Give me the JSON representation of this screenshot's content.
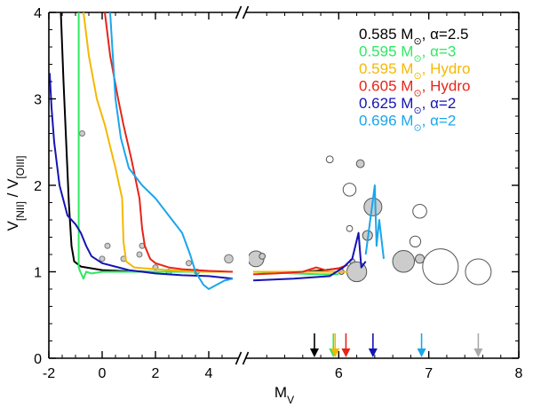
{
  "chart_data": {
    "type": "line",
    "xlabel_main": "M",
    "xlabel_sub": "V",
    "ylabel_num_main": "V",
    "ylabel_num_sub": "[NII]",
    "ylabel_sep": " / ",
    "ylabel_den_main": "V",
    "ylabel_den_sub": "[OIII]",
    "ylim": [
      0,
      4
    ],
    "left_panel_xlim": [
      -2,
      5
    ],
    "right_panel_xlim": [
      5,
      8
    ],
    "xticks_left": [
      "-2",
      "0",
      "2",
      "4"
    ],
    "xticks_right": [
      "6",
      "7",
      "8"
    ],
    "yticks": [
      "0",
      "1",
      "2",
      "3",
      "4"
    ],
    "sun_symbol": "⊙",
    "series": [
      {
        "name": "0.585",
        "legend": {
          "mass": "0.585 M",
          "param": ", α=2.5"
        },
        "color": "#000000",
        "left": [
          [
            -1.55,
            4.0
          ],
          [
            -1.45,
            3.2
          ],
          [
            -1.35,
            2.5
          ],
          [
            -1.25,
            1.8
          ],
          [
            -1.15,
            1.3
          ],
          [
            -1.05,
            1.12
          ],
          [
            -0.8,
            1.06
          ],
          [
            0,
            1.02
          ],
          [
            1,
            1.005
          ],
          [
            2,
            1.0
          ],
          [
            3,
            1.0
          ],
          [
            4.0,
            1.0
          ],
          [
            4.9,
            1.0
          ]
        ],
        "right": [
          [
            5.05,
            1.0
          ],
          [
            5.3,
            1.0
          ],
          [
            5.6,
            1.0
          ],
          [
            5.85,
            1.02
          ],
          [
            6.0,
            1.04
          ]
        ],
        "arrow_x": 5.73
      },
      {
        "name": "0.595 a3",
        "legend": {
          "mass": "0.595 M",
          "param": ", α=3"
        },
        "color": "#2ee860",
        "left": [
          [
            -0.88,
            4.0
          ],
          [
            -0.88,
            1.05
          ],
          [
            -0.82,
            1.0
          ],
          [
            -0.7,
            0.92
          ],
          [
            -0.6,
            1.0
          ],
          [
            -0.4,
            0.98
          ],
          [
            0,
            1.0
          ],
          [
            1,
            1.0
          ],
          [
            2,
            1.0
          ],
          [
            3,
            1.0
          ],
          [
            4.0,
            1.0
          ],
          [
            4.9,
            1.0
          ]
        ],
        "right": [
          [
            5.05,
            1.0
          ],
          [
            5.5,
            0.98
          ],
          [
            5.8,
            0.97
          ],
          [
            6.0,
            0.97
          ]
        ],
        "arrow_x": 5.94
      },
      {
        "name": "0.595 hydro",
        "legend": {
          "mass": "0.595 M",
          "param": ", Hydro"
        },
        "color": "#f5b800",
        "left": [
          [
            -0.7,
            4.0
          ],
          [
            -0.5,
            3.5
          ],
          [
            -0.2,
            3.0
          ],
          [
            0.1,
            2.7
          ],
          [
            0.5,
            2.2
          ],
          [
            0.75,
            1.85
          ],
          [
            0.8,
            1.35
          ],
          [
            0.9,
            1.12
          ],
          [
            1.2,
            1.05
          ],
          [
            2,
            1.03
          ],
          [
            3,
            1.01
          ],
          [
            4,
            1.0
          ],
          [
            4.9,
            1.0
          ]
        ],
        "right": [
          [
            5.05,
            1.0
          ],
          [
            5.5,
            1.0
          ],
          [
            5.9,
            1.0
          ],
          [
            6.1,
            1.0
          ]
        ],
        "arrow_x": 5.96
      },
      {
        "name": "0.605 hydro",
        "legend": {
          "mass": "0.605 M",
          "param": ", Hydro"
        },
        "color": "#e82418",
        "left": [
          [
            0.1,
            4.0
          ],
          [
            0.3,
            3.5
          ],
          [
            0.6,
            3.0
          ],
          [
            0.8,
            2.7
          ],
          [
            1.1,
            2.3
          ],
          [
            1.4,
            1.85
          ],
          [
            1.5,
            1.5
          ],
          [
            1.6,
            1.3
          ],
          [
            1.8,
            1.15
          ],
          [
            2,
            1.1
          ],
          [
            2.5,
            1.05
          ],
          [
            3,
            1.03
          ],
          [
            4,
            1.01
          ],
          [
            4.9,
            1.0
          ]
        ],
        "right": [
          [
            5.05,
            0.97
          ],
          [
            5.3,
            0.98
          ],
          [
            5.6,
            1.0
          ],
          [
            5.75,
            1.05
          ],
          [
            5.85,
            1.02
          ],
          [
            6.0,
            1.04
          ],
          [
            6.1,
            1.08
          ]
        ],
        "arrow_x": 6.08
      },
      {
        "name": "0.625",
        "legend": {
          "mass": "0.625 M",
          "param": ", α=2"
        },
        "color": "#1414b4",
        "left": [
          [
            -1.97,
            3.3
          ],
          [
            -1.9,
            2.9
          ],
          [
            -1.8,
            2.5
          ],
          [
            -1.6,
            2.0
          ],
          [
            -1.3,
            1.65
          ],
          [
            -1.0,
            1.55
          ],
          [
            -0.8,
            1.45
          ],
          [
            -0.6,
            1.3
          ],
          [
            -0.4,
            1.18
          ],
          [
            0,
            1.1
          ],
          [
            1,
            1.02
          ],
          [
            2,
            0.98
          ],
          [
            3,
            0.96
          ],
          [
            4,
            0.95
          ],
          [
            4.9,
            0.92
          ]
        ],
        "right": [
          [
            5.05,
            0.9
          ],
          [
            5.5,
            0.92
          ],
          [
            5.9,
            0.95
          ],
          [
            6.05,
            1.05
          ],
          [
            6.15,
            1.15
          ],
          [
            6.22,
            1.45
          ],
          [
            6.25,
            1.05
          ],
          [
            6.3,
            1.12
          ]
        ],
        "arrow_x": 6.38
      },
      {
        "name": "0.696",
        "legend": {
          "mass": "0.696 M",
          "param": ", α=2"
        },
        "color": "#1aa6ec",
        "left": [
          [
            0.3,
            4.0
          ],
          [
            0.4,
            3.5
          ],
          [
            0.5,
            3.0
          ],
          [
            0.7,
            2.55
          ],
          [
            1.0,
            2.2
          ],
          [
            1.5,
            2.0
          ],
          [
            2.0,
            1.85
          ],
          [
            2.5,
            1.65
          ],
          [
            3.0,
            1.45
          ],
          [
            3.3,
            1.2
          ],
          [
            3.5,
            1.0
          ],
          [
            3.8,
            0.85
          ],
          [
            4.0,
            0.8
          ],
          [
            4.3,
            0.85
          ],
          [
            4.6,
            0.9
          ],
          [
            4.9,
            0.92
          ]
        ],
        "right": [
          [
            6.3,
            1.2
          ],
          [
            6.35,
            1.6
          ],
          [
            6.4,
            2.0
          ],
          [
            6.42,
            1.3
          ],
          [
            6.45,
            1.6
          ],
          [
            6.5,
            1.15
          ]
        ],
        "arrow_x": 6.92
      }
    ],
    "extra_arrows": [
      {
        "x": 7.55,
        "color": "#aaaaaa"
      }
    ],
    "left_points": [
      {
        "x": -0.75,
        "y": 2.6,
        "r": 0.06
      },
      {
        "x": 0.2,
        "y": 1.3,
        "r": 0.09
      },
      {
        "x": 0,
        "y": 1.15,
        "r": 0.08
      },
      {
        "x": 0.8,
        "y": 1.15,
        "r": 0.07
      },
      {
        "x": 1.4,
        "y": 1.2,
        "r": 0.06
      },
      {
        "x": 1.5,
        "y": 1.3,
        "r": 0.08
      },
      {
        "x": 2.0,
        "y": 1.05,
        "r": 0.08
      },
      {
        "x": 2.5,
        "y": 1.0,
        "r": 0.07
      },
      {
        "x": 3.25,
        "y": 1.1,
        "r": 0.08
      },
      {
        "x": 3.55,
        "y": 1.0,
        "r": 0.06
      },
      {
        "x": 4.75,
        "y": 1.15,
        "r": 0.16
      }
    ],
    "right_points": [
      {
        "x": 5.08,
        "y": 1.15,
        "r": 0.16,
        "fill": "#cccccc"
      },
      {
        "x": 5.15,
        "y": 1.18,
        "r": 0.06,
        "fill": "#cccccc"
      },
      {
        "x": 5.9,
        "y": 2.3,
        "r": 0.07,
        "fill": "#ffffff"
      },
      {
        "x": 6.24,
        "y": 2.25,
        "r": 0.08,
        "fill": "#cccccc"
      },
      {
        "x": 6.12,
        "y": 1.95,
        "r": 0.13,
        "fill": "#ffffff"
      },
      {
        "x": 6.38,
        "y": 1.75,
        "r": 0.18,
        "fill": "#cccccc"
      },
      {
        "x": 6.12,
        "y": 1.5,
        "r": 0.06,
        "fill": "#ffffff"
      },
      {
        "x": 6.32,
        "y": 1.42,
        "r": 0.1,
        "fill": "#cccccc"
      },
      {
        "x": 6.9,
        "y": 1.7,
        "r": 0.14,
        "fill": "#ffffff"
      },
      {
        "x": 6.85,
        "y": 1.35,
        "r": 0.11,
        "fill": "#ffffff"
      },
      {
        "x": 6.72,
        "y": 1.12,
        "r": 0.22,
        "fill": "#cccccc"
      },
      {
        "x": 6.9,
        "y": 1.15,
        "r": 0.09,
        "fill": "#cccccc"
      },
      {
        "x": 7.13,
        "y": 1.06,
        "r": 0.36,
        "fill": "#ffffff"
      },
      {
        "x": 7.55,
        "y": 1.0,
        "r": 0.26,
        "fill": "#ffffff"
      },
      {
        "x": 6.15,
        "y": 1.12,
        "r": 0.05,
        "fill": "#cccccc"
      },
      {
        "x": 6.2,
        "y": 1.0,
        "r": 0.2,
        "fill": "#cccccc"
      },
      {
        "x": 6.03,
        "y": 1.0,
        "r": 0.05,
        "fill": "#cccccc"
      }
    ]
  }
}
